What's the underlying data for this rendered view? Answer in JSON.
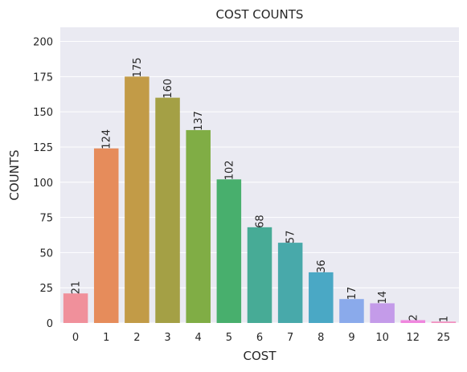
{
  "chart_data": {
    "type": "bar",
    "title": "COST COUNTS",
    "xlabel": "COST",
    "ylabel": "COUNTS",
    "categories": [
      "0",
      "1",
      "2",
      "3",
      "4",
      "5",
      "6",
      "7",
      "8",
      "9",
      "10",
      "12",
      "25"
    ],
    "values": [
      21,
      124,
      175,
      160,
      137,
      102,
      68,
      57,
      36,
      17,
      14,
      2,
      1
    ],
    "data_labels": [
      "21",
      "124",
      "175",
      "160",
      "137",
      "102",
      "68",
      "57",
      "36",
      "17",
      "14",
      "2",
      "1"
    ],
    "ylim": [
      0,
      210
    ],
    "yticks": [
      0,
      25,
      50,
      75,
      100,
      125,
      150,
      175,
      200
    ],
    "ytick_labels": [
      "0",
      "25",
      "50",
      "75",
      "100",
      "125",
      "150",
      "175",
      "200"
    ],
    "grid": true,
    "colors": {
      "plot_background": "#eaeaf2",
      "gridline": "#ffffff",
      "bars": [
        "#f0909b",
        "#e68c5b",
        "#c29b47",
        "#a4a045",
        "#80ad45",
        "#48af6d",
        "#47ab96",
        "#48a9aa",
        "#4aa8c5",
        "#8aaaeb",
        "#c49be9",
        "#ef86de",
        "#f18fbf"
      ]
    }
  }
}
